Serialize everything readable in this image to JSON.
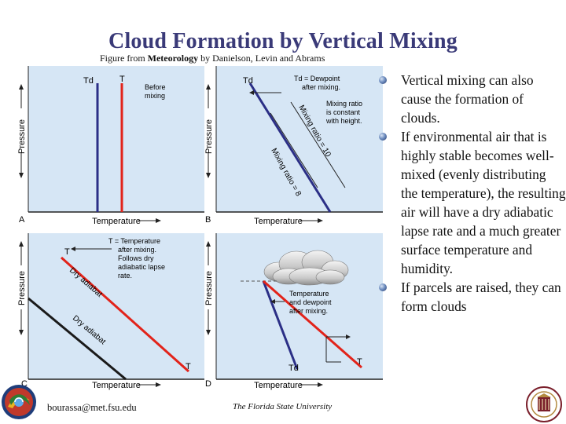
{
  "slide": {
    "title": "Cloud Formation by Vertical Mixing",
    "credit_prefix": "Figure from ",
    "credit_book": "Meteorology",
    "credit_suffix": " by Danielson, Levin and Abrams"
  },
  "figure": {
    "pressure_label": "Pressure",
    "temperature_label": "Temperature",
    "panel_a": {
      "letter": "A",
      "td": "Td",
      "t": "T",
      "note": [
        "Before",
        "mixing"
      ]
    },
    "panel_b": {
      "letter": "B",
      "td": "Td",
      "legend": [
        "Td = Dewpoint",
        "after mixing."
      ],
      "ratio_note": [
        "Mixing ratio",
        "is constant",
        "with height."
      ],
      "mixing_ratio_10": "Mixing ratio = 10",
      "mixing_ratio_8": "Mixing ratio = 8"
    },
    "panel_c": {
      "letter": "C",
      "t_top": "T",
      "t_right": "T",
      "legend": [
        "T = Temperature",
        "after mixing.",
        "Follows dry",
        "adiabatic lapse",
        "rate."
      ],
      "dry_adiabat_1": "Dry adiabat",
      "dry_adiabat_2": "Dry adiabat"
    },
    "panel_d": {
      "letter": "D",
      "td": "Td",
      "t": "T",
      "note": [
        "Temperature",
        "and dewpoint",
        "after mixing."
      ]
    }
  },
  "bullets": [
    "Vertical mixing can also cause the formation of clouds.",
    "If environmental air that is highly stable becomes well-mixed (evenly distributing the temperature), the resulting air will have a dry adiabatic lapse rate and a much greater surface temperature and humidity.",
    "If parcels are raised, they can form clouds"
  ],
  "footer": {
    "email": "bourassa@met.fsu.edu",
    "university": "The Florida State University"
  },
  "colors": {
    "title": "#3a3a78",
    "temperature_line": "#e2231a",
    "dewpoint_line": "#2b2f86",
    "panel_bg": "#d6e6f5"
  }
}
